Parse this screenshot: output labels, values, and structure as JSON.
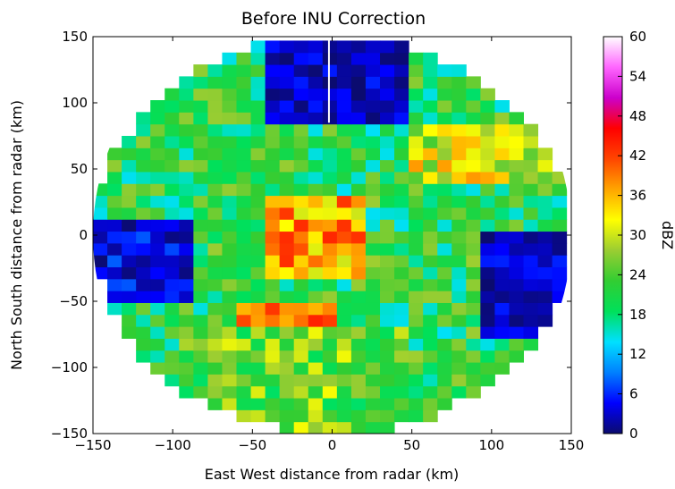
{
  "chart_data": {
    "type": "heatmap",
    "title": "Before INU Correction",
    "xlabel": "East West distance from radar (km)",
    "ylabel": "North South distance from radar (km)",
    "xlim": [
      -150,
      150
    ],
    "ylim": [
      -150,
      150
    ],
    "xticks": [
      -150,
      -100,
      -50,
      0,
      50,
      100,
      150
    ],
    "yticks": [
      -150,
      -100,
      -50,
      0,
      50,
      100,
      150
    ],
    "xtick_labels": [
      "−150",
      "−100",
      "−50",
      "0",
      "50",
      "100",
      "150"
    ],
    "ytick_labels": [
      "−150",
      "−100",
      "−50",
      "0",
      "50",
      "100",
      "150"
    ],
    "colorbar": {
      "label": "dBZ",
      "range": [
        0,
        60
      ],
      "ticks": [
        0,
        6,
        12,
        18,
        24,
        30,
        36,
        42,
        48,
        54,
        60
      ],
      "colormap": [
        "#0b0b6e",
        "#0000ff",
        "#0080ff",
        "#00e0ff",
        "#00e05a",
        "#32cd32",
        "#9acd32",
        "#ffff00",
        "#ffa500",
        "#ff4500",
        "#ff0000",
        "#cc00cc",
        "#ff66ff",
        "#ffffff"
      ]
    },
    "coverage": "circular sweep, radius 150 km",
    "features": [
      {
        "region": "central core",
        "x_range": [
          -40,
          20
        ],
        "y_range": [
          -30,
          30
        ],
        "dbz_range": [
          30,
          44
        ]
      },
      {
        "region": "band near -60 km north-south",
        "x_range": [
          -60,
          0
        ],
        "y_range": [
          -70,
          -55
        ],
        "dbz_range": [
          36,
          44
        ]
      },
      {
        "region": "north-central gap",
        "x_range": [
          -40,
          50
        ],
        "y_range": [
          80,
          150
        ],
        "dbz_range": [
          0,
          6
        ]
      },
      {
        "region": "west gap",
        "x_range": [
          -150,
          -90
        ],
        "y_range": [
          -50,
          10
        ],
        "dbz_range": [
          0,
          8
        ]
      },
      {
        "region": "east blank area",
        "x_range": [
          90,
          150
        ],
        "y_range": [
          -80,
          0
        ],
        "dbz_range": [
          0,
          6
        ]
      },
      {
        "region": "north-east band",
        "x_range": [
          50,
          150
        ],
        "y_range": [
          40,
          80
        ],
        "dbz_range": [
          24,
          38
        ]
      },
      {
        "region": "south-west",
        "x_range": [
          -100,
          50
        ],
        "y_range": [
          -150,
          -70
        ],
        "dbz_range": [
          18,
          32
        ]
      }
    ]
  }
}
